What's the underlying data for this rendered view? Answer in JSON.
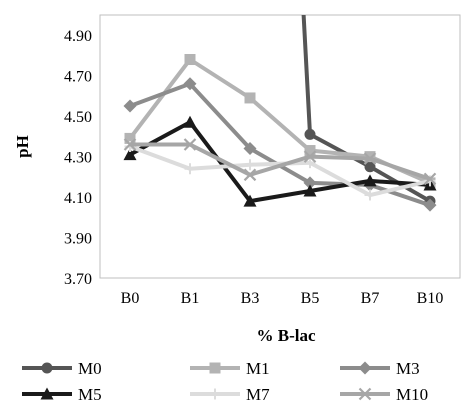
{
  "chart_data": {
    "type": "line",
    "title": "",
    "xlabel": "% B-lac",
    "ylabel": "pH",
    "categories": [
      "B0",
      "B1",
      "B3",
      "B5",
      "B7",
      "B10"
    ],
    "y_ticks": [
      "3.70",
      "3.90",
      "4.10",
      "4.30",
      "4.50",
      "4.70",
      "4.90"
    ],
    "ylim": [
      3.7,
      5.0
    ],
    "grid": false,
    "legend_position": "bottom",
    "series": [
      {
        "name": "M0",
        "values": [
          null,
          null,
          null,
          4.41,
          4.25,
          4.08
        ],
        "color": "#555555",
        "marker": "circle",
        "note_values": [
          null,
          null,
          null,
          4.41,
          4.25,
          4.08
        ]
      },
      {
        "name": "M1",
        "values": [
          4.39,
          4.78,
          4.59,
          4.33,
          4.3,
          4.17
        ],
        "color": "#b3b3b3",
        "marker": "square"
      },
      {
        "name": "M3",
        "values": [
          4.55,
          4.66,
          4.34,
          4.17,
          4.16,
          4.06
        ],
        "color": "#8c8c8c",
        "marker": "diamond"
      },
      {
        "name": "M5",
        "values": [
          4.31,
          4.47,
          4.08,
          4.13,
          4.18,
          4.16
        ],
        "color": "#1a1a1a",
        "marker": "triangle"
      },
      {
        "name": "M7",
        "values": [
          4.35,
          4.24,
          4.26,
          4.27,
          4.11,
          4.18
        ],
        "color": "#dcdcdc",
        "marker": "plus"
      },
      {
        "name": "M10",
        "values": [
          4.36,
          4.36,
          4.21,
          4.3,
          4.29,
          4.19
        ],
        "color": "#a6a6a6",
        "marker": "x"
      }
    ]
  }
}
